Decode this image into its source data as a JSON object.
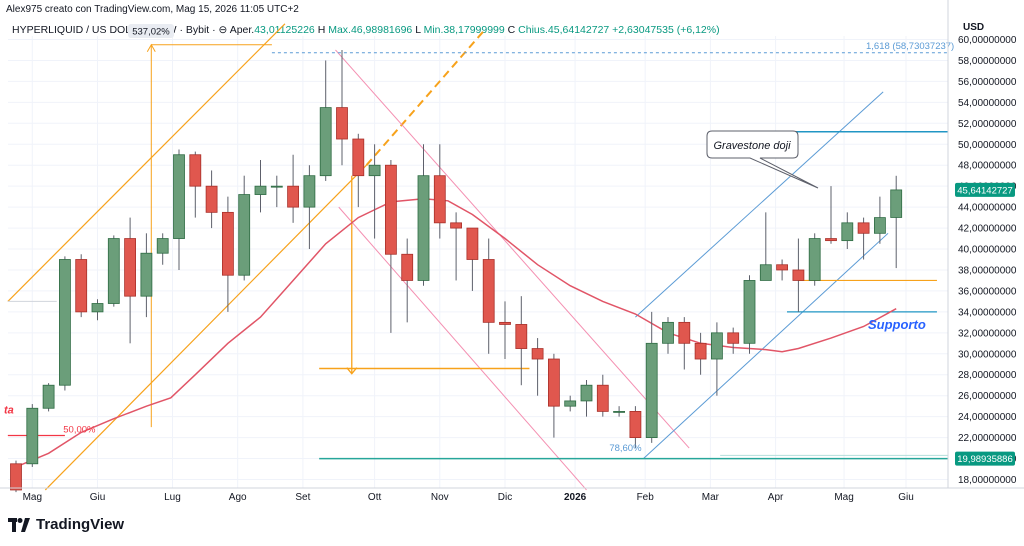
{
  "header": {
    "credit": "Alex975 creato con TradingView.com, Mag 15, 2026 11:05 UTC+2",
    "symbol": "HYPERLIQUID / US DOLLAR · 1W · Bybit · ⊖",
    "open_label": "Aper.",
    "open": "43,01125226",
    "high_label": "H",
    "high": "Max.46,98981696",
    "low_label": "L",
    "low": "Min.38,17999999",
    "close_label": "C",
    "close": "Chius.45,64142727",
    "change": "+2,63047535 (+6,12%)",
    "currency": "USD"
  },
  "logo": {
    "text": "TradingView"
  },
  "chart_data": {
    "type": "candlestick",
    "interval": "1W",
    "ylim": [
      17,
      62
    ],
    "y_ticks": [
      18,
      20,
      22,
      24,
      26,
      28,
      30,
      32,
      34,
      36,
      38,
      40,
      42,
      44,
      46,
      48,
      50,
      52,
      54,
      56,
      58,
      60
    ],
    "y_tick_format": "comma-8-decimals",
    "x_labels": [
      {
        "label": "Mag",
        "week": 1
      },
      {
        "label": "Giu",
        "week": 5
      },
      {
        "label": "Lug",
        "week": 9.6
      },
      {
        "label": "Ago",
        "week": 13.6
      },
      {
        "label": "Set",
        "week": 17.6
      },
      {
        "label": "Ott",
        "week": 22
      },
      {
        "label": "Nov",
        "week": 26
      },
      {
        "label": "Dic",
        "week": 30
      },
      {
        "label": "2026",
        "week": 34.3,
        "bold": true
      },
      {
        "label": "Feb",
        "week": 38.6
      },
      {
        "label": "Mar",
        "week": 42.6
      },
      {
        "label": "Apr",
        "week": 46.6
      },
      {
        "label": "Mag",
        "week": 50.8
      },
      {
        "label": "Giu",
        "week": 54.6
      }
    ],
    "candles": [
      [
        19.5,
        17.0,
        19.8,
        16.8
      ],
      [
        19.5,
        24.8,
        25.2,
        19.2
      ],
      [
        24.8,
        27.0,
        27.2,
        24.5
      ],
      [
        27.0,
        39.0,
        39.3,
        26.5
      ],
      [
        39.0,
        34.0,
        39.5,
        33.5
      ],
      [
        34.0,
        34.8,
        35.2,
        33.2
      ],
      [
        34.8,
        41.0,
        41.3,
        34.5
      ],
      [
        41.0,
        35.5,
        43.0,
        31.0
      ],
      [
        35.5,
        39.6,
        41.5,
        33.5
      ],
      [
        39.6,
        41.0,
        41.5,
        38.5
      ],
      [
        41.0,
        49.0,
        49.5,
        38.0
      ],
      [
        49.0,
        46.0,
        49.3,
        43.0
      ],
      [
        46.0,
        43.5,
        47.5,
        42.0
      ],
      [
        43.5,
        37.5,
        45.0,
        34.0
      ],
      [
        37.5,
        45.2,
        47.0,
        37.0
      ],
      [
        45.2,
        46.0,
        48.5,
        43.5
      ],
      [
        46.0,
        46.0,
        47.0,
        44.0
      ],
      [
        46.0,
        44.0,
        49.0,
        42.5
      ],
      [
        44.0,
        47.0,
        48.0,
        40.0
      ],
      [
        47.0,
        53.5,
        58.0,
        46.5
      ],
      [
        53.5,
        50.5,
        59.0,
        48.0
      ],
      [
        50.5,
        47.0,
        51.0,
        44.0
      ],
      [
        47.0,
        48.0,
        50.0,
        41.0
      ],
      [
        48.0,
        39.5,
        48.5,
        32.0
      ],
      [
        39.5,
        37.0,
        41.0,
        33.0
      ],
      [
        37.0,
        47.0,
        50.0,
        36.5
      ],
      [
        47.0,
        42.5,
        50.0,
        41.0
      ],
      [
        42.5,
        42.0,
        43.5,
        37.0
      ],
      [
        42.0,
        39.0,
        42.0,
        36.0
      ],
      [
        39.0,
        33.0,
        41.0,
        30.0
      ],
      [
        33.0,
        32.8,
        35.0,
        29.5
      ],
      [
        32.8,
        30.5,
        35.5,
        27.0
      ],
      [
        30.5,
        29.5,
        31.5,
        26.0
      ],
      [
        29.5,
        25.0,
        30.0,
        22.0
      ],
      [
        25.0,
        25.5,
        26.0,
        24.5
      ],
      [
        25.5,
        27.0,
        27.5,
        24.0
      ],
      [
        27.0,
        24.5,
        28.0,
        24.0
      ],
      [
        24.5,
        24.5,
        25.0,
        24.0
      ],
      [
        24.5,
        22.0,
        25.0,
        21.0
      ],
      [
        22.0,
        31.0,
        34.0,
        21.5
      ],
      [
        31.0,
        33.0,
        33.5,
        30.0
      ],
      [
        33.0,
        31.0,
        33.5,
        28.5
      ],
      [
        31.0,
        29.5,
        32.0,
        28.0
      ],
      [
        29.5,
        32.0,
        33.0,
        26.0
      ],
      [
        32.0,
        31.0,
        32.5,
        30.0
      ],
      [
        31.0,
        37.0,
        37.5,
        30.0
      ],
      [
        37.0,
        38.5,
        43.5,
        37.0
      ],
      [
        38.5,
        38.0,
        39.0,
        37.0
      ],
      [
        38.0,
        37.0,
        41.0,
        34.0
      ],
      [
        37.0,
        41.0,
        41.5,
        36.5
      ],
      [
        41.0,
        40.8,
        46.0,
        40.5
      ],
      [
        40.8,
        42.5,
        43.5,
        40.0
      ],
      [
        42.5,
        41.5,
        43.0,
        39.0
      ],
      [
        41.5,
        43.0,
        45.0,
        40.5
      ],
      [
        43.01125226,
        45.64142727,
        46.98981696,
        38.17999999
      ]
    ],
    "series": [
      {
        "name": "MA",
        "color": "#e15567",
        "values": [
          [
            0,
            19.2
          ],
          [
            2,
            20.5
          ],
          [
            4,
            22.5
          ],
          [
            6,
            23.8
          ],
          [
            8,
            25.0
          ],
          [
            9.5,
            25.8
          ],
          [
            11,
            28.0
          ],
          [
            13,
            31.0
          ],
          [
            15,
            33.5
          ],
          [
            17,
            37.0
          ],
          [
            19,
            40.5
          ],
          [
            21,
            43.0
          ],
          [
            23,
            44.5
          ],
          [
            25,
            44.8
          ],
          [
            26.5,
            44.6
          ],
          [
            28,
            43.3
          ],
          [
            30,
            41.0
          ],
          [
            32,
            38.5
          ],
          [
            34,
            36.5
          ],
          [
            36,
            35.0
          ],
          [
            38,
            33.8
          ],
          [
            40,
            32.0
          ],
          [
            42,
            31.0
          ],
          [
            44,
            30.6
          ],
          [
            46,
            30.4
          ],
          [
            47,
            30.2
          ],
          [
            48,
            30.5
          ],
          [
            50,
            31.5
          ],
          [
            52,
            32.6
          ],
          [
            54,
            34.3
          ]
        ]
      }
    ],
    "price_labels": [
      {
        "value": "45,64142727",
        "y": 45.64142727,
        "color": "#089981"
      },
      {
        "value": "19,98935886",
        "y": 19.98935886,
        "color": "#089981"
      }
    ],
    "annotations": [
      {
        "type": "callout",
        "text": "Gravestone doji"
      },
      {
        "type": "label",
        "text": "Supporto",
        "color": "#2962ff"
      },
      {
        "type": "level",
        "text": "1,618 (58,73037237)",
        "y": 58.73037237,
        "color": "#5b9bd5"
      },
      {
        "type": "level",
        "text": "78,60%",
        "color": "#5b9bd5"
      },
      {
        "type": "level",
        "text": "50,00%",
        "color": "#f23645"
      },
      {
        "type": "measure",
        "text": "537,02%"
      },
      {
        "type": "label",
        "text": "ta",
        "color": "#f23645"
      }
    ]
  }
}
